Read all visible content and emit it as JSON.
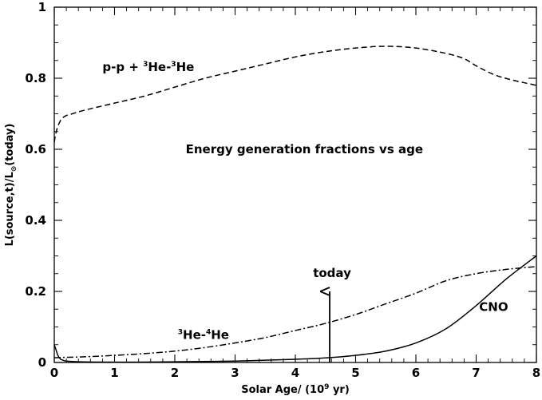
{
  "chart_data": {
    "type": "line",
    "title": "Energy generation fractions vs age",
    "xlabel": {
      "prefix": "Solar Age/ (10",
      "sup": "9",
      "suffix": " yr)"
    },
    "ylabel": {
      "prefix": "L(source,t)/L",
      "sub": "⊙",
      "suffix": "(today)"
    },
    "xlim": [
      0,
      8
    ],
    "ylim": [
      0,
      1
    ],
    "x_ticks": [
      0,
      1,
      2,
      3,
      4,
      5,
      6,
      7,
      8
    ],
    "y_ticks": [
      0,
      0.2,
      0.4,
      0.6,
      0.8,
      1
    ],
    "x_tick_labels": [
      "0",
      "1",
      "2",
      "3",
      "4",
      "5",
      "6",
      "7",
      "8"
    ],
    "y_tick_labels": [
      "0",
      "0.2",
      "0.4",
      "0.6",
      "0.8",
      "1"
    ],
    "grid": false,
    "series": [
      {
        "name": "pp",
        "label_parts": [
          {
            "t": "p-p + "
          },
          {
            "t": "3",
            "sup": true
          },
          {
            "t": "He-"
          },
          {
            "t": "3",
            "sup": true
          },
          {
            "t": "He"
          }
        ],
        "style": "dashed",
        "x": [
          0,
          0.02,
          0.05,
          0.1,
          0.15,
          0.2,
          0.3,
          0.5,
          1.0,
          1.5,
          2.0,
          2.5,
          3.0,
          3.5,
          4.0,
          4.5,
          5.0,
          5.5,
          6.0,
          6.5,
          6.8,
          7.0,
          7.3,
          7.6,
          8.0
        ],
        "y": [
          0.62,
          0.64,
          0.66,
          0.68,
          0.69,
          0.695,
          0.7,
          0.71,
          0.73,
          0.75,
          0.775,
          0.8,
          0.82,
          0.84,
          0.86,
          0.875,
          0.885,
          0.89,
          0.885,
          0.87,
          0.855,
          0.835,
          0.81,
          0.795,
          0.78
        ]
      },
      {
        "name": "he3he4",
        "label_parts": [
          {
            "t": "3",
            "sup": true
          },
          {
            "t": "He-"
          },
          {
            "t": "4",
            "sup": true
          },
          {
            "t": "He"
          }
        ],
        "style": "dashdot",
        "x": [
          0,
          0.1,
          0.5,
          1.0,
          1.5,
          2.0,
          2.5,
          3.0,
          3.5,
          4.0,
          4.5,
          5.0,
          5.5,
          6.0,
          6.5,
          7.0,
          7.5,
          8.0
        ],
        "y": [
          0.013,
          0.014,
          0.016,
          0.02,
          0.025,
          0.032,
          0.042,
          0.055,
          0.07,
          0.09,
          0.11,
          0.135,
          0.165,
          0.195,
          0.23,
          0.25,
          0.262,
          0.27
        ]
      },
      {
        "name": "CNO",
        "label_parts": [
          {
            "t": "CNO"
          }
        ],
        "style": "solid",
        "x": [
          0,
          0.03,
          0.06,
          0.1,
          0.15,
          0.2,
          0.4,
          0.8,
          1.5,
          2.0,
          3.0,
          4.0,
          4.5,
          5.0,
          5.5,
          6.0,
          6.5,
          7.0,
          7.5,
          8.0
        ],
        "y": [
          0.05,
          0.035,
          0.02,
          0.01,
          0.006,
          0.004,
          0.002,
          0.001,
          0.001,
          0.002,
          0.004,
          0.009,
          0.013,
          0.02,
          0.032,
          0.055,
          0.095,
          0.16,
          0.235,
          0.3
        ]
      }
    ],
    "annotations": {
      "today_label": "today",
      "today_x": 4.57,
      "today_arrow_y": [
        0,
        0.2
      ]
    }
  }
}
